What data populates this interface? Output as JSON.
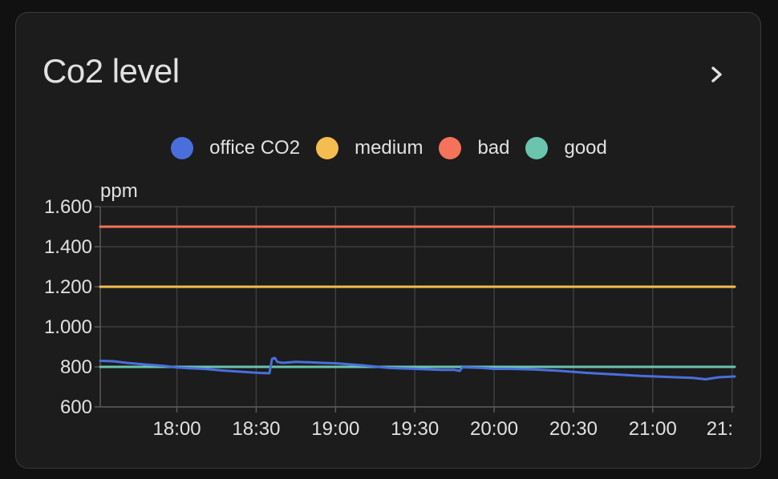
{
  "card": {
    "title": "Co2 level",
    "more_icon": "chevron-right-icon"
  },
  "chart_data": {
    "type": "line",
    "ylabel": "ppm",
    "ylim": [
      600,
      1600
    ],
    "y_ticks": [
      "1.600",
      "1.400",
      "1.200",
      "1.000",
      "800",
      "600"
    ],
    "y_tick_values": [
      1600,
      1400,
      1200,
      1000,
      800,
      600
    ],
    "xlim": [
      "17:31",
      "21:31"
    ],
    "x_tick_labels": [
      "18:00",
      "18:30",
      "19:00",
      "19:30",
      "20:00",
      "20:30",
      "21:00",
      "21:"
    ],
    "x_tick_minutes_since_axis_start": [
      29,
      59,
      89,
      119,
      149,
      179,
      209,
      239
    ],
    "grid": true,
    "legend_position": "top-center",
    "series": [
      {
        "name": "office CO2",
        "color": "#4a6fdc",
        "x": [
          "17:31",
          "17:36",
          "17:41",
          "17:48",
          "17:55",
          "18:00",
          "18:05",
          "18:10",
          "18:17",
          "18:25",
          "18:31",
          "18:35",
          "18:36",
          "18:37",
          "18:38",
          "18:40",
          "18:45",
          "18:50",
          "18:55",
          "19:00",
          "19:10",
          "19:20",
          "19:30",
          "19:40",
          "19:45",
          "19:47",
          "19:48",
          "19:55",
          "20:00",
          "20:05",
          "20:15",
          "20:25",
          "20:35",
          "20:45",
          "20:55",
          "21:05",
          "21:15",
          "21:20",
          "21:25",
          "21:31"
        ],
        "y": [
          830,
          828,
          820,
          812,
          805,
          797,
          793,
          790,
          782,
          775,
          770,
          768,
          840,
          845,
          825,
          820,
          825,
          823,
          820,
          818,
          808,
          795,
          790,
          785,
          785,
          780,
          798,
          795,
          790,
          790,
          787,
          780,
          770,
          763,
          755,
          750,
          745,
          738,
          748,
          752
        ]
      },
      {
        "name": "medium",
        "color": "#f5bd4f",
        "x": [
          "17:31",
          "21:31"
        ],
        "y": [
          1200,
          1200
        ]
      },
      {
        "name": "bad",
        "color": "#f5735a",
        "x": [
          "17:31",
          "21:31"
        ],
        "y": [
          1500,
          1500
        ]
      },
      {
        "name": "good",
        "color": "#6ac4ae",
        "x": [
          "17:31",
          "21:31"
        ],
        "y": [
          800,
          800
        ]
      }
    ]
  }
}
